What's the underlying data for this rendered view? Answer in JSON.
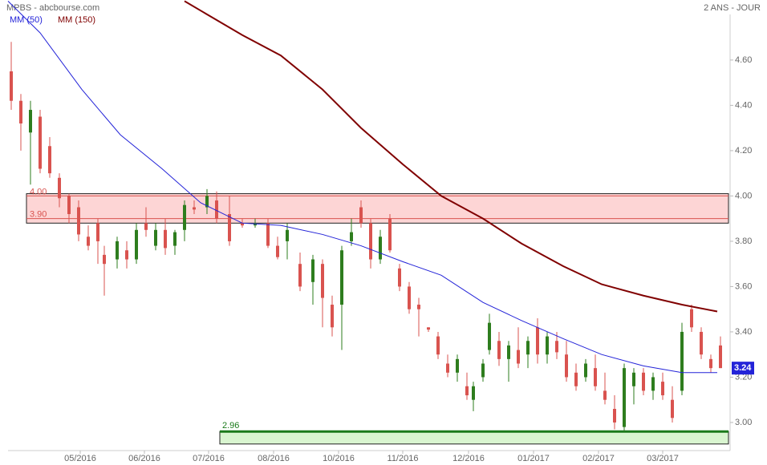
{
  "chart_data": {
    "type": "candlestick",
    "title": "MPBS - abcbourse.com",
    "period": "2 ANS - JOUR",
    "xlim": [
      -2.5,
      225
    ],
    "ylim": [
      2.876,
      4.865
    ],
    "xticks": [
      {
        "value": 22.5,
        "label": "05/2016"
      },
      {
        "value": 42.5,
        "label": "06/2016"
      },
      {
        "value": 62.5,
        "label": "07/2016"
      },
      {
        "value": 82.75,
        "label": "08/2016"
      },
      {
        "value": 103,
        "label": "10/2016"
      },
      {
        "value": 123,
        "label": "11/2016"
      },
      {
        "value": 143.5,
        "label": "12/2016"
      },
      {
        "value": 163.75,
        "label": "01/2017"
      },
      {
        "value": 184,
        "label": "02/2017"
      },
      {
        "value": 204,
        "label": "03/2017"
      }
    ],
    "yticks": [
      {
        "value": 3.0,
        "label": "3.00"
      },
      {
        "value": 3.2,
        "label": "3.20"
      },
      {
        "value": 3.4,
        "label": "3.40"
      },
      {
        "value": 3.6,
        "label": "3.60"
      },
      {
        "value": 3.8,
        "label": "3.80"
      },
      {
        "value": 4.0,
        "label": "4.00"
      },
      {
        "value": 4.2,
        "label": "4.20"
      },
      {
        "value": 4.4,
        "label": "4.40"
      },
      {
        "value": 4.6,
        "label": "4.60"
      }
    ],
    "up_color": "#2e7d1e",
    "down_color": "#d9534f",
    "candles": {
      "x": [
        1,
        4,
        7,
        10,
        13,
        16,
        19,
        22,
        25,
        28,
        30,
        34,
        37,
        40,
        43,
        46,
        49,
        52,
        55,
        58,
        62,
        65,
        69,
        73,
        77,
        81,
        84,
        87,
        91,
        95,
        98,
        101,
        104,
        107,
        110,
        113,
        116,
        119,
        122,
        125,
        128,
        131,
        134,
        137,
        140,
        143,
        145,
        148,
        150,
        153,
        156,
        159,
        162,
        165,
        168,
        171,
        174,
        177,
        180,
        183,
        186,
        189,
        192,
        195,
        198,
        201,
        204,
        207,
        210,
        213,
        216,
        219,
        222
      ],
      "open": [
        4.55,
        4.42,
        4.28,
        4.35,
        4.22,
        4.08,
        4.0,
        3.95,
        3.82,
        3.88,
        3.74,
        3.72,
        3.76,
        3.72,
        3.88,
        3.78,
        3.85,
        3.78,
        3.85,
        3.95,
        3.95,
        3.98,
        3.92,
        3.88,
        3.87,
        3.88,
        3.78,
        3.8,
        3.7,
        3.62,
        3.7,
        3.52,
        3.52,
        3.8,
        3.95,
        3.88,
        3.72,
        3.9,
        3.68,
        3.6,
        3.52,
        3.42,
        3.38,
        3.26,
        3.22,
        3.16,
        3.1,
        3.2,
        3.32,
        3.36,
        3.28,
        3.32,
        3.3,
        3.42,
        3.3,
        3.36,
        3.3,
        3.22,
        3.2,
        3.24,
        3.14,
        3.06,
        2.98,
        3.16,
        3.22,
        3.14,
        3.18,
        3.1,
        3.14,
        3.5,
        3.4,
        3.28,
        3.34
      ],
      "high": [
        4.68,
        4.45,
        4.42,
        4.38,
        4.26,
        4.1,
        4.01,
        3.98,
        3.87,
        3.9,
        3.78,
        3.82,
        3.8,
        3.88,
        3.95,
        3.88,
        3.9,
        3.85,
        3.98,
        3.98,
        4.03,
        4.02,
        4.0,
        3.9,
        3.9,
        3.9,
        3.82,
        3.88,
        3.75,
        3.74,
        3.72,
        3.56,
        3.78,
        3.9,
        3.98,
        3.9,
        3.85,
        3.92,
        3.7,
        3.62,
        3.55,
        3.42,
        3.4,
        3.3,
        3.3,
        3.22,
        3.18,
        3.28,
        3.48,
        3.4,
        3.36,
        3.42,
        3.38,
        3.46,
        3.4,
        3.4,
        3.36,
        3.26,
        3.28,
        3.3,
        3.22,
        3.12,
        3.26,
        3.24,
        3.24,
        3.22,
        3.22,
        3.16,
        3.44,
        3.52,
        3.42,
        3.3,
        3.38
      ],
      "low": [
        4.38,
        4.2,
        4.05,
        4.1,
        4.08,
        3.95,
        3.88,
        3.8,
        3.76,
        3.7,
        3.56,
        3.68,
        3.68,
        3.7,
        3.82,
        3.76,
        3.74,
        3.74,
        3.8,
        3.92,
        3.92,
        3.88,
        3.78,
        3.86,
        3.86,
        3.77,
        3.72,
        3.72,
        3.58,
        3.52,
        3.42,
        3.38,
        3.32,
        3.78,
        3.86,
        3.68,
        3.7,
        3.75,
        3.58,
        3.48,
        3.38,
        3.4,
        3.28,
        3.2,
        3.18,
        3.1,
        3.05,
        3.18,
        3.3,
        3.25,
        3.18,
        3.24,
        3.24,
        3.26,
        3.26,
        3.28,
        3.18,
        3.14,
        3.18,
        3.14,
        3.08,
        2.97,
        2.96,
        3.08,
        3.12,
        3.1,
        3.1,
        3.0,
        3.12,
        3.4,
        3.28,
        3.22,
        3.24
      ],
      "close": [
        4.42,
        4.32,
        4.38,
        4.12,
        4.1,
        3.99,
        3.92,
        3.83,
        3.78,
        3.8,
        3.7,
        3.8,
        3.72,
        3.85,
        3.85,
        3.85,
        3.77,
        3.84,
        3.96,
        3.94,
        4.0,
        3.9,
        3.8,
        3.87,
        3.88,
        3.78,
        3.73,
        3.85,
        3.6,
        3.72,
        3.55,
        3.42,
        3.76,
        3.84,
        3.88,
        3.72,
        3.82,
        3.76,
        3.6,
        3.5,
        3.5,
        3.41,
        3.3,
        3.22,
        3.28,
        3.12,
        3.16,
        3.26,
        3.44,
        3.28,
        3.34,
        3.26,
        3.36,
        3.3,
        3.38,
        3.31,
        3.2,
        3.16,
        3.26,
        3.16,
        3.1,
        3.0,
        3.24,
        3.22,
        3.14,
        3.2,
        3.12,
        3.02,
        3.4,
        3.42,
        3.3,
        3.24,
        3.24
      ]
    },
    "ma": [
      {
        "name": "MM (50)",
        "color": "#2323d8",
        "x": [
          0,
          10,
          23,
          35,
          48,
          60,
          73,
          85,
          98,
          110,
          123,
          135,
          148,
          160,
          173,
          185,
          198,
          210,
          221
        ],
        "values": [
          4.86,
          4.72,
          4.47,
          4.27,
          4.12,
          3.97,
          3.88,
          3.87,
          3.83,
          3.78,
          3.71,
          3.65,
          3.53,
          3.45,
          3.37,
          3.3,
          3.25,
          3.22,
          3.22
        ]
      },
      {
        "name": "MM (150)",
        "color": "#800000",
        "x": [
          55,
          73,
          85,
          98,
          110,
          123,
          135,
          148,
          160,
          173,
          185,
          198,
          210,
          221
        ],
        "values": [
          4.86,
          4.71,
          4.62,
          4.47,
          4.3,
          4.14,
          4.0,
          3.9,
          3.79,
          3.69,
          3.61,
          3.56,
          3.52,
          3.49
        ]
      }
    ],
    "resistance_zone": [
      3.88,
      4.01
    ],
    "levels": [
      {
        "label": "4.00",
        "value": 4.0
      },
      {
        "label": "3.90",
        "value": 3.9
      }
    ],
    "support": {
      "label": "2.96",
      "value": 2.96,
      "zone": [
        2.905,
        2.96
      ],
      "start": 66
    },
    "last_price": {
      "label": "3.24",
      "value": 3.24
    }
  }
}
